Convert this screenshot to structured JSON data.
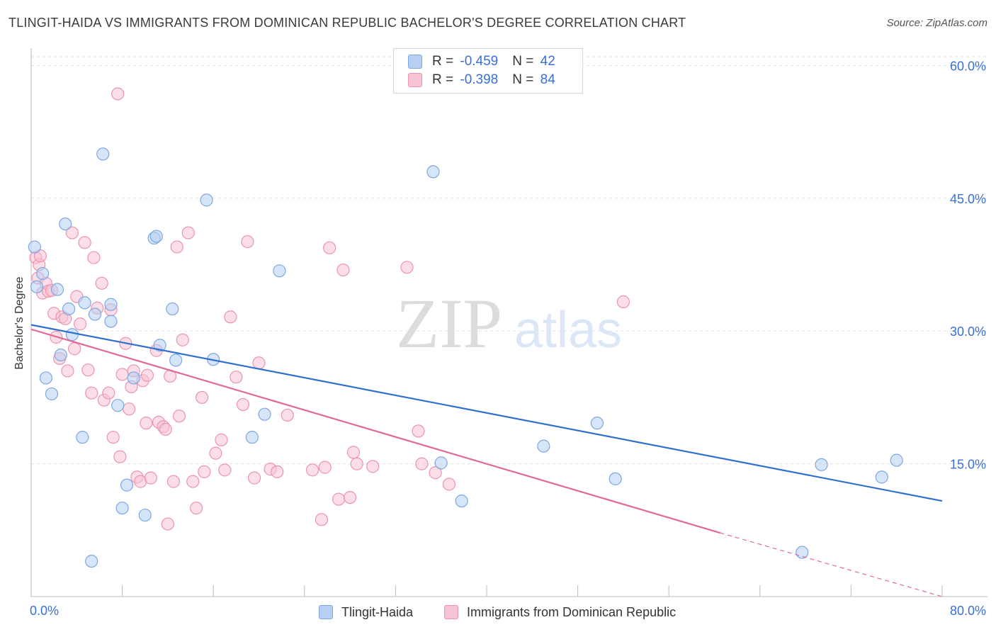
{
  "title": "TLINGIT-HAIDA VS IMMIGRANTS FROM DOMINICAN REPUBLIC BACHELOR'S DEGREE CORRELATION CHART",
  "source": "Source: ZipAtlas.com",
  "watermark": {
    "zip": "ZIP",
    "atlas": "atlas"
  },
  "colors": {
    "blue_fill": "#b6cff3",
    "blue_stroke": "#7da7e3",
    "blue_line": "#2f6fd0",
    "pink_fill": "#f8c3d3",
    "pink_stroke": "#ec93b0",
    "pink_line": "#e0699a",
    "grid": "#e3e3e3",
    "axis_label": "#3a6fd6"
  },
  "legend": {
    "rows": [
      {
        "r_label": "R = ",
        "r_value": "-0.459",
        "n_label": "N = ",
        "n_value": "42"
      },
      {
        "r_label": "R = ",
        "r_value": "-0.398",
        "n_label": "N = ",
        "n_value": "84"
      }
    ]
  },
  "bottom_legend": [
    "Tlingit-Haida",
    "Immigrants from Dominican Republic"
  ],
  "chart_data": {
    "type": "scatter",
    "title": "TLINGIT-HAIDA VS IMMIGRANTS FROM DOMINICAN REPUBLIC BACHELOR'S DEGREE CORRELATION CHART",
    "xlabel": "",
    "ylabel": "Bachelor's Degree",
    "xlim": [
      0,
      80
    ],
    "ylim": [
      0,
      61
    ],
    "x_tick_labels": [
      "0.0%",
      "80.0%"
    ],
    "y_ticks": [
      15,
      30,
      45,
      60
    ],
    "y_tick_labels": [
      "15.0%",
      "30.0%",
      "45.0%",
      "60.0%"
    ],
    "grid": true,
    "legend_position": "top-center",
    "series": [
      {
        "name": "Tlingit-Haida",
        "points": [
          [
            0.3,
            39.5
          ],
          [
            0.5,
            35.0
          ],
          [
            1.0,
            36.5
          ],
          [
            1.3,
            24.7
          ],
          [
            1.8,
            22.9
          ],
          [
            2.3,
            34.7
          ],
          [
            2.6,
            27.3
          ],
          [
            3.0,
            42.1
          ],
          [
            3.3,
            32.5
          ],
          [
            3.6,
            29.6
          ],
          [
            4.5,
            18.0
          ],
          [
            4.7,
            33.2
          ],
          [
            5.3,
            4.0
          ],
          [
            5.6,
            31.9
          ],
          [
            6.3,
            50.0
          ],
          [
            7.0,
            33.0
          ],
          [
            7.0,
            31.1
          ],
          [
            7.6,
            21.6
          ],
          [
            8.0,
            10.0
          ],
          [
            8.4,
            12.6
          ],
          [
            9.0,
            24.7
          ],
          [
            10.0,
            9.2
          ],
          [
            10.8,
            40.5
          ],
          [
            11.0,
            40.7
          ],
          [
            11.3,
            28.4
          ],
          [
            12.4,
            32.5
          ],
          [
            12.7,
            26.7
          ],
          [
            15.4,
            44.8
          ],
          [
            16.0,
            26.8
          ],
          [
            19.4,
            18.0
          ],
          [
            20.5,
            20.6
          ],
          [
            21.8,
            36.8
          ],
          [
            35.3,
            48.0
          ],
          [
            36.0,
            15.1
          ],
          [
            37.8,
            10.8
          ],
          [
            45.0,
            17.0
          ],
          [
            49.7,
            19.6
          ],
          [
            51.3,
            13.3
          ],
          [
            67.7,
            5.0
          ],
          [
            69.4,
            14.9
          ],
          [
            74.7,
            13.5
          ],
          [
            76.0,
            15.4
          ]
        ],
        "trend": {
          "x0": 0,
          "y0": 30.7,
          "x1": 80,
          "y1": 10.8
        }
      },
      {
        "name": "Immigrants from Dominican Republic",
        "points": [
          [
            0.4,
            38.3
          ],
          [
            0.6,
            36.0
          ],
          [
            0.7,
            37.5
          ],
          [
            0.8,
            38.5
          ],
          [
            1.0,
            34.3
          ],
          [
            1.3,
            35.4
          ],
          [
            1.5,
            34.5
          ],
          [
            1.8,
            34.6
          ],
          [
            2.0,
            32.0
          ],
          [
            2.2,
            29.3
          ],
          [
            2.5,
            26.9
          ],
          [
            2.7,
            31.6
          ],
          [
            3.0,
            31.4
          ],
          [
            3.2,
            25.5
          ],
          [
            3.6,
            41.1
          ],
          [
            3.8,
            28.0
          ],
          [
            4.0,
            33.9
          ],
          [
            4.3,
            30.8
          ],
          [
            4.7,
            40.0
          ],
          [
            5.0,
            25.6
          ],
          [
            5.3,
            23.0
          ],
          [
            5.5,
            38.3
          ],
          [
            5.8,
            32.6
          ],
          [
            6.2,
            35.4
          ],
          [
            6.4,
            22.2
          ],
          [
            6.8,
            23.0
          ],
          [
            7.0,
            32.4
          ],
          [
            7.2,
            18.0
          ],
          [
            7.6,
            56.8
          ],
          [
            7.8,
            15.8
          ],
          [
            8.0,
            25.1
          ],
          [
            8.3,
            28.6
          ],
          [
            8.6,
            21.2
          ],
          [
            8.8,
            23.7
          ],
          [
            9.0,
            25.5
          ],
          [
            9.3,
            13.5
          ],
          [
            9.6,
            13.0
          ],
          [
            9.8,
            24.4
          ],
          [
            10.1,
            19.6
          ],
          [
            10.2,
            25.0
          ],
          [
            10.5,
            13.4
          ],
          [
            11.0,
            27.8
          ],
          [
            11.2,
            19.7
          ],
          [
            11.6,
            19.2
          ],
          [
            11.8,
            18.9
          ],
          [
            12.0,
            8.2
          ],
          [
            12.2,
            24.9
          ],
          [
            12.5,
            13.0
          ],
          [
            12.8,
            39.5
          ],
          [
            13.0,
            20.4
          ],
          [
            13.3,
            29.0
          ],
          [
            13.8,
            41.1
          ],
          [
            14.2,
            13.0
          ],
          [
            14.5,
            10.0
          ],
          [
            15.0,
            22.5
          ],
          [
            15.2,
            14.1
          ],
          [
            16.2,
            16.2
          ],
          [
            16.7,
            17.7
          ],
          [
            17.0,
            14.3
          ],
          [
            17.5,
            31.6
          ],
          [
            18.0,
            24.8
          ],
          [
            18.6,
            21.7
          ],
          [
            19.0,
            40.1
          ],
          [
            19.6,
            13.4
          ],
          [
            20.0,
            26.4
          ],
          [
            21.0,
            14.4
          ],
          [
            21.6,
            14.1
          ],
          [
            22.5,
            20.5
          ],
          [
            24.7,
            14.3
          ],
          [
            25.5,
            8.7
          ],
          [
            25.8,
            14.6
          ],
          [
            26.2,
            39.4
          ],
          [
            27.0,
            11.0
          ],
          [
            27.4,
            36.9
          ],
          [
            28.0,
            11.2
          ],
          [
            28.3,
            16.3
          ],
          [
            28.6,
            15.0
          ],
          [
            30.0,
            14.7
          ],
          [
            33.0,
            37.2
          ],
          [
            34.0,
            18.7
          ],
          [
            34.3,
            15.0
          ],
          [
            35.5,
            14.0
          ],
          [
            36.7,
            12.7
          ],
          [
            52.0,
            33.3
          ]
        ],
        "trend": {
          "x0": 0,
          "y0": 30.2,
          "x1": 60.5,
          "y1": 7.2,
          "dash_x1": 80,
          "dash_y1": 0
        }
      }
    ]
  }
}
